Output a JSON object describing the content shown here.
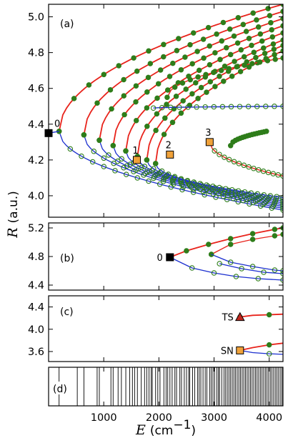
{
  "chart_data": [
    {
      "panel": "(a)",
      "type": "line",
      "xlim": [
        0,
        4250
      ],
      "ylim": [
        3.88,
        5.07
      ],
      "yticks": [
        "4.0",
        "4.2",
        "4.4",
        "4.6",
        "4.8",
        "5.0"
      ],
      "ytick_values": [
        4.0,
        4.2,
        4.4,
        4.6,
        4.8,
        5.0
      ],
      "grid": false,
      "colors": {
        "red_branch": "#e8231b",
        "blue_branch": "#1a2ecf",
        "filled_marker": "#2e7d1a",
        "open_marker": "#2e7d1a",
        "square_marker": "#f0a23a"
      },
      "labelled_points": [
        {
          "label": "0",
          "x": 0,
          "y": 4.35,
          "marker": "black-square"
        },
        {
          "label": "1",
          "x": 1600,
          "y": 4.2,
          "marker": "orange-square"
        },
        {
          "label": "2",
          "x": 2200,
          "y": 4.23,
          "marker": "orange-square"
        },
        {
          "label": "3",
          "x": 2920,
          "y": 4.3,
          "marker": "orange-square"
        }
      ],
      "families": [
        {
          "tip_E": 190,
          "tip_R": 4.36,
          "upper_R_at_4250": 5.07,
          "lower_R_at_4250": 3.92
        },
        {
          "tip_E": 640,
          "tip_R": 4.34,
          "upper_R_at_4250": 5.03,
          "lower_R_at_4250": 3.93
        },
        {
          "tip_E": 920,
          "tip_R": 4.31,
          "upper_R_at_4250": 4.99,
          "lower_R_at_4250": 3.94
        },
        {
          "tip_E": 1170,
          "tip_R": 4.28,
          "upper_R_at_4250": 4.95,
          "lower_R_at_4250": 3.95
        },
        {
          "tip_E": 1400,
          "tip_R": 4.25,
          "upper_R_at_4250": 4.91,
          "lower_R_at_4250": 3.96
        },
        {
          "tip_E": 1610,
          "tip_R": 4.22,
          "upper_R_at_4250": 4.87,
          "lower_R_at_4250": 3.97
        },
        {
          "tip_E": 1780,
          "tip_R": 4.2,
          "upper_R_at_4250": 4.84,
          "lower_R_at_4250": 3.98
        },
        {
          "tip_E": 1940,
          "tip_R": 4.18,
          "upper_R_at_4250": 4.81,
          "lower_R_at_4250": 3.99
        }
      ],
      "extra_branches": [
        {
          "from": [
            2150,
            4.55
          ],
          "to": [
            4250,
            4.77
          ],
          "note": "red/blue branch starting near (2150, 4.55)"
        },
        {
          "from": [
            1900,
            4.49
          ],
          "to": [
            4250,
            4.5
          ],
          "note": "flat blue/green branch near R=4.49"
        },
        {
          "from": [
            2920,
            4.3
          ],
          "to": [
            4250,
            4.11
          ],
          "note": "branch from point 3"
        },
        {
          "from": [
            3300,
            4.28
          ],
          "to": [
            3950,
            4.36
          ],
          "note": "small upper branch"
        }
      ]
    },
    {
      "panel": "(b)",
      "type": "line",
      "xlim": [
        0,
        4250
      ],
      "ylim": [
        4.33,
        5.27
      ],
      "yticks": [
        "4.4",
        "4.8",
        "5.2"
      ],
      "ytick_values": [
        4.4,
        4.8,
        5.2
      ],
      "labelled_points": [
        {
          "label": "0",
          "x": 2200,
          "y": 4.79,
          "marker": "black-square"
        }
      ],
      "upper_branch": {
        "x": [
          2200,
          2500,
          2900,
          3300,
          3700,
          4100,
          4250
        ],
        "y": [
          4.79,
          4.88,
          4.97,
          5.05,
          5.12,
          5.18,
          5.2
        ]
      },
      "lower_branch": {
        "x": [
          2200,
          2600,
          3000,
          3400,
          3800,
          4250
        ],
        "y": [
          4.79,
          4.64,
          4.57,
          4.52,
          4.49,
          4.47
        ]
      },
      "inner_branches": [
        {
          "x": [
            2950,
            3300,
            3700,
            4100,
            4250
          ],
          "y": [
            4.83,
            4.97,
            5.04,
            5.09,
            5.11
          ]
        },
        {
          "x": [
            2950,
            3300,
            3700,
            4100,
            4250
          ],
          "y": [
            4.83,
            4.72,
            4.66,
            4.61,
            4.6
          ]
        },
        {
          "x": [
            3100,
            3500,
            3900,
            4250
          ],
          "y": [
            4.7,
            4.63,
            4.58,
            4.56
          ]
        }
      ]
    },
    {
      "panel": "(c)",
      "type": "line",
      "xlim": [
        0,
        4250
      ],
      "ylim": [
        3.42,
        4.6
      ],
      "yticks": [
        "3.6",
        "4.0",
        "4.4"
      ],
      "ytick_values": [
        3.6,
        4.0,
        4.4
      ],
      "labelled_points": [
        {
          "label": "TS",
          "x": 3470,
          "y": 4.22,
          "marker": "red-triangle"
        },
        {
          "label": "SN",
          "x": 3470,
          "y": 3.62,
          "marker": "orange-square"
        }
      ],
      "ts_branch": {
        "x": [
          3470,
          3700,
          4000,
          4250
        ],
        "y": [
          4.22,
          4.25,
          4.26,
          4.27
        ]
      },
      "sn_upper": {
        "x": [
          3470,
          3700,
          4000,
          4250
        ],
        "y": [
          3.62,
          3.67,
          3.72,
          3.75
        ]
      },
      "sn_lower": {
        "x": [
          3470,
          3700,
          4000,
          4250
        ],
        "y": [
          3.62,
          3.58,
          3.56,
          3.55
        ]
      }
    },
    {
      "panel": "(d)",
      "type": "spectrum",
      "xlim": [
        0,
        4250
      ],
      "xticks": [
        "1000",
        "2000",
        "3000",
        "4000"
      ],
      "xtick_values": [
        1000,
        2000,
        3000,
        4000
      ],
      "lines_E": [
        190,
        520,
        640,
        880,
        920,
        1130,
        1170,
        1260,
        1320,
        1400,
        1470,
        1520,
        1560,
        1610,
        1680,
        1740,
        1780,
        1820,
        1860,
        1880,
        1940,
        1980,
        2020,
        2090,
        2130,
        2160,
        2200,
        2240,
        2290,
        2320,
        2380,
        2410,
        2460,
        2500,
        2540,
        2560,
        2610,
        2650,
        2700,
        2730,
        2760,
        2800,
        2840,
        2870,
        2920,
        2950,
        2980,
        3010,
        3050,
        3080,
        3100,
        3140,
        3180,
        3210,
        3240,
        3270,
        3300,
        3330,
        3360,
        3390,
        3420,
        3450,
        3480,
        3510,
        3540,
        3570,
        3600,
        3630,
        3660,
        3690,
        3720,
        3750,
        3780,
        3810,
        3840,
        3870,
        3900,
        3930,
        3960,
        3990,
        4020,
        4050,
        4080,
        4110,
        4140,
        4170,
        4200,
        4230
      ]
    }
  ],
  "axes": {
    "ylabel_symbol": "R",
    "ylabel_unit": "(a.u.)",
    "xlabel_symbol": "E",
    "xlabel_unit_base": "(cm",
    "xlabel_unit_sup": "−1",
    "xlabel_unit_close": ")"
  }
}
